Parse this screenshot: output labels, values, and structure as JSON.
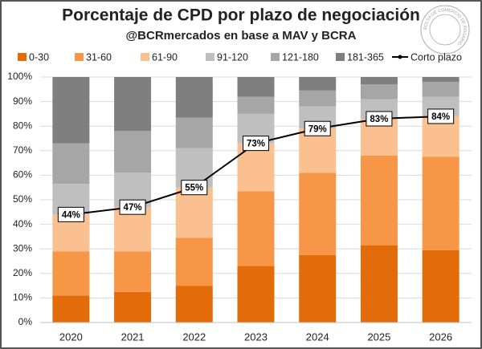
{
  "chart_data": {
    "type": "stacked_bar_line",
    "title": "Porcentaje de CPD por plazo de negociación",
    "subtitle": "@BCRmercados en base a MAV y BCRA",
    "logo": "BOLSA DE COMERCIO DE ROSARIO",
    "categories": [
      "2020",
      "2021",
      "2022",
      "2023",
      "2024",
      "2025",
      "2026"
    ],
    "series": [
      {
        "name": "0-30",
        "color": "#e36c0a",
        "values": [
          11,
          12.5,
          15,
          23,
          27.5,
          31.5,
          29.5
        ]
      },
      {
        "name": "31-60",
        "color": "#f79646",
        "values": [
          18,
          16.5,
          19.5,
          30.5,
          33.5,
          36.5,
          38
        ]
      },
      {
        "name": "61-90",
        "color": "#fac090",
        "values": [
          15,
          18,
          20.5,
          19.5,
          18,
          15,
          16.5
        ]
      },
      {
        "name": "91-120",
        "color": "#bfbfbf",
        "values": [
          12.5,
          14,
          16,
          12,
          9,
          8,
          8
        ]
      },
      {
        "name": "121-180",
        "color": "#a6a6a6",
        "values": [
          16.5,
          17,
          12.5,
          7,
          6.5,
          6,
          6
        ]
      },
      {
        "name": "181-365",
        "color": "#7f7f7f",
        "values": [
          27,
          22,
          16.5,
          8,
          5.5,
          3,
          2
        ]
      }
    ],
    "line": {
      "name": "Corto plazo",
      "color": "#000000",
      "values": [
        44,
        47,
        55,
        73,
        79,
        83,
        84
      ],
      "value_labels": [
        "44%",
        "47%",
        "55%",
        "73%",
        "79%",
        "83%",
        "84%"
      ]
    },
    "ylim": [
      0,
      100
    ],
    "yticks": [
      {
        "value": 0,
        "label": "0%"
      },
      {
        "value": 10,
        "label": "10%"
      },
      {
        "value": 20,
        "label": "20%"
      },
      {
        "value": 30,
        "label": "30%"
      },
      {
        "value": 40,
        "label": "40%"
      },
      {
        "value": 50,
        "label": "50%"
      },
      {
        "value": 60,
        "label": "60%"
      },
      {
        "value": 70,
        "label": "70%"
      },
      {
        "value": 80,
        "label": "80%"
      },
      {
        "value": 90,
        "label": "90%"
      },
      {
        "value": 100,
        "label": "100%"
      }
    ],
    "grid": true,
    "legend": "top"
  }
}
